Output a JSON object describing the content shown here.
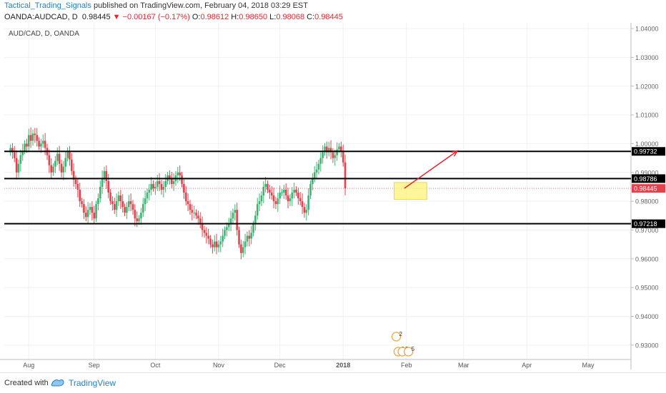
{
  "header": {
    "author": "Tactical_Trading_Signals",
    "published_text": " published on TradingView.com, February 04, 2018 03:29 EST",
    "symbol": "OANDA:AUDCAD, D",
    "last": "0.98445",
    "change": "▼ −0.00167 (−0.17%)",
    "o_label": "O:",
    "o_val": "0.98612",
    "h_label": "H:",
    "h_val": "0.98650",
    "l_label": "L:",
    "l_val": "0.98068",
    "c_label": "C:",
    "c_val": "0.98445"
  },
  "chart_label": "AUD/CAD, D, OANDA",
  "footer": {
    "created": "Created with",
    "brand": "TradingView"
  },
  "colors": {
    "up": "#3cb371",
    "down": "#e8404a",
    "level": "#000000",
    "price_line": "#e8404a",
    "highlight": "#fff27a",
    "arrow": "#e8252b"
  },
  "chart_data": {
    "type": "candlestick",
    "ylim": [
      0.925,
      1.042
    ],
    "y_ticks": [
      "0.93000",
      "0.94000",
      "0.95000",
      "0.96000",
      "0.97000",
      "0.98000",
      "0.99000",
      "1.00000",
      "1.01000",
      "1.02000",
      "1.03000",
      "1.04000"
    ],
    "y_tick_values": [
      0.93,
      0.94,
      0.95,
      0.96,
      0.97,
      0.98,
      0.99,
      1.0,
      1.01,
      1.02,
      1.03,
      1.04
    ],
    "x_ticks": [
      {
        "label": "Aug",
        "day": 9
      },
      {
        "label": "Sep",
        "day": 41
      },
      {
        "label": "Oct",
        "day": 71
      },
      {
        "label": "Nov",
        "day": 102
      },
      {
        "label": "Dec",
        "day": 132
      },
      {
        "label": "2018",
        "day": 163
      },
      {
        "label": "Feb",
        "day": 194
      },
      {
        "label": "Mar",
        "day": 222
      },
      {
        "label": "Apr",
        "day": 253
      },
      {
        "label": "May",
        "day": 283
      }
    ],
    "x_range": [
      -3,
      304
    ],
    "levels": [
      {
        "value": 0.99732,
        "label": "0.99732"
      },
      {
        "value": 0.98786,
        "label": "0.98786"
      },
      {
        "value": 0.97218,
        "label": "0.97218"
      }
    ],
    "last_price": {
      "value": 0.98445,
      "label": "0.98445"
    },
    "highlight_box": {
      "x0": 188,
      "x1": 204,
      "y0": 0.9806,
      "y1": 0.9865
    },
    "projection_arrow": {
      "x0": 193,
      "y0": 0.9845,
      "x1": 219,
      "y1": 0.9975
    },
    "markers": [
      "2",
      "2",
      "3",
      "5"
    ],
    "closes": [
      0.9985,
      0.997,
      0.995,
      0.99,
      0.993,
      0.996,
      0.9975,
      1.0,
      0.999,
      1.003,
      1.001,
      1.0035,
      1.003,
      1.001,
      0.999,
      1.0,
      1.001,
      0.9985,
      0.996,
      0.9925,
      0.99,
      0.992,
      0.994,
      0.9965,
      0.993,
      0.99,
      0.992,
      0.995,
      0.9975,
      0.9945,
      0.9905,
      0.9875,
      0.986,
      0.984,
      0.98,
      0.979,
      0.976,
      0.9745,
      0.977,
      0.978,
      0.976,
      0.974,
      0.979,
      0.981,
      0.985,
      0.988,
      0.9905,
      0.987,
      0.983,
      0.98,
      0.979,
      0.977,
      0.98,
      0.982,
      0.98,
      0.978,
      0.976,
      0.978,
      0.98,
      0.979,
      0.977,
      0.974,
      0.973,
      0.974,
      0.976,
      0.979,
      0.981,
      0.983,
      0.984,
      0.986,
      0.9845,
      0.985,
      0.987,
      0.986,
      0.984,
      0.985,
      0.987,
      0.989,
      0.988,
      0.986,
      0.987,
      0.989,
      0.99,
      0.989,
      0.986,
      0.983,
      0.98,
      0.979,
      0.977,
      0.976,
      0.976,
      0.975,
      0.974,
      0.972,
      0.97,
      0.969,
      0.968,
      0.967,
      0.965,
      0.964,
      0.966,
      0.964,
      0.965,
      0.966,
      0.968,
      0.97,
      0.971,
      0.972,
      0.974,
      0.976,
      0.977,
      0.97,
      0.965,
      0.962,
      0.964,
      0.966,
      0.968,
      0.967,
      0.969,
      0.972,
      0.975,
      0.979,
      0.98,
      0.982,
      0.985,
      0.986,
      0.984,
      0.983,
      0.982,
      0.98,
      0.979,
      0.981,
      0.983,
      0.983,
      0.984,
      0.982,
      0.98,
      0.981,
      0.983,
      0.984,
      0.983,
      0.981,
      0.98,
      0.978,
      0.976,
      0.977,
      0.982,
      0.986,
      0.988,
      0.99,
      0.991,
      0.993,
      0.995,
      0.997,
      0.999,
      0.997,
      0.9985,
      0.997,
      0.995,
      0.996,
      0.998,
      0.999,
      0.9975,
      0.9935,
      0.9845
    ]
  }
}
